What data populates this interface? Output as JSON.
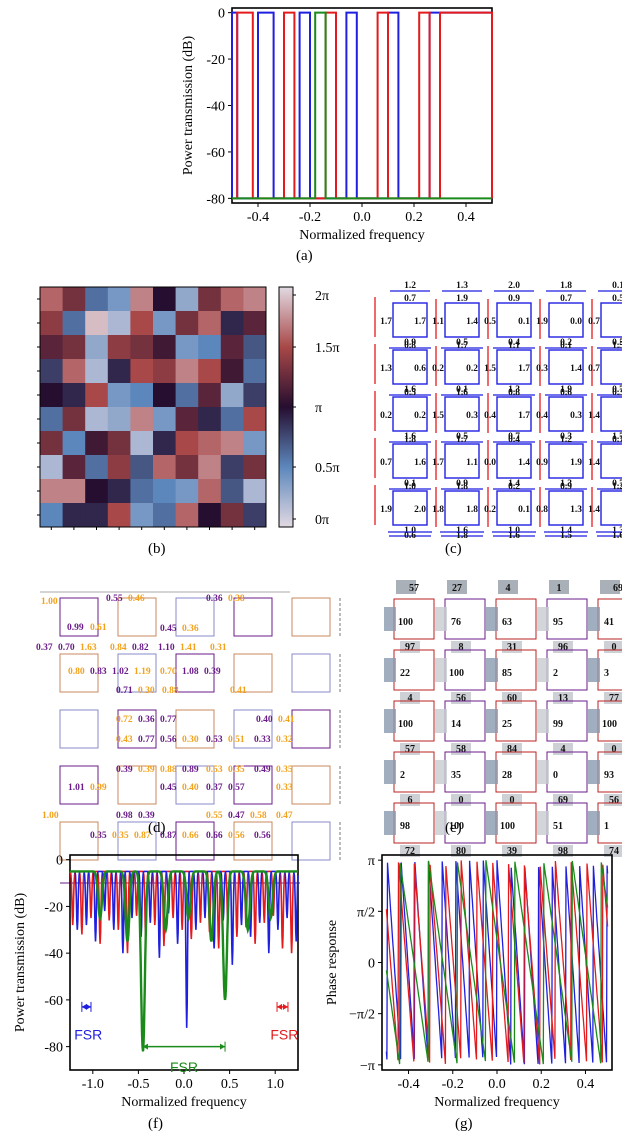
{
  "colors": {
    "red": "#e41a1c",
    "blue": "#1f1fe0",
    "green": "#1a8a1a",
    "purple": "#6a1b8a",
    "orange": "#f2a21c"
  },
  "panel_labels": {
    "a": "(a)",
    "b": "(b)",
    "c": "(c)",
    "d": "(d)",
    "e": "(e)",
    "f": "(f)",
    "g": "(g)"
  },
  "chart_data": [
    {
      "id": "a",
      "type": "line",
      "xlabel": "Normalized frequency",
      "ylabel": "Power transmission (dB)",
      "xlim": [
        -0.5,
        0.5
      ],
      "ylim": [
        -82,
        2
      ],
      "xticks": [
        "-0.4",
        "-0.2",
        "0.0",
        "0.2",
        "0.4"
      ],
      "xtick_values": [
        -0.4,
        -0.2,
        0.0,
        0.2,
        0.4
      ],
      "yticks": [
        "0",
        "-20",
        "-40",
        "-60",
        "-80"
      ],
      "ytick_values": [
        0,
        -20,
        -40,
        -60,
        -80
      ],
      "series": [
        {
          "color": "red",
          "passbands": [
            [
              -0.48,
              -0.42
            ],
            [
              -0.3,
              -0.26
            ],
            [
              -0.14,
              -0.1
            ],
            [
              0.06,
              0.1
            ],
            [
              0.22,
              0.26
            ],
            [
              0.3,
              0.5
            ]
          ]
        },
        {
          "color": "blue",
          "passbands": [
            [
              -0.5,
              -0.48
            ],
            [
              -0.4,
              -0.34
            ],
            [
              -0.24,
              -0.2
            ],
            [
              -0.06,
              -0.02
            ],
            [
              0.1,
              0.14
            ],
            [
              0.26,
              0.5
            ]
          ]
        },
        {
          "color": "green",
          "passbands": [
            [
              -0.18,
              -0.14
            ]
          ]
        }
      ]
    },
    {
      "id": "b",
      "type": "heatmap",
      "colorbar_labels": [
        "2π",
        "1.5π",
        "π",
        "0.5π",
        "0π"
      ],
      "colorbar_values": [
        2,
        1.5,
        1,
        0.5,
        0
      ],
      "rows": 10,
      "cols": 10,
      "values": [
        [
          1.6,
          1.3,
          0.6,
          0.4,
          1.7,
          1.0,
          0.3,
          1.3,
          1.6,
          1.7
        ],
        [
          1.4,
          0.6,
          1.9,
          0.2,
          1.5,
          0.4,
          1.3,
          1.6,
          0.9,
          1.2
        ],
        [
          1.2,
          1.3,
          0.3,
          1.4,
          1.3,
          1.1,
          0.4,
          0.5,
          1.2,
          0.7
        ],
        [
          0.8,
          1.6,
          0.2,
          0.9,
          1.5,
          1.4,
          1.7,
          1.5,
          1.1,
          0.6
        ],
        [
          1.0,
          0.9,
          1.5,
          0.4,
          0.5,
          1.0,
          0.6,
          1.2,
          0.3,
          0.8
        ],
        [
          0.6,
          1.3,
          0.2,
          0.3,
          1.7,
          0.4,
          1.2,
          0.9,
          0.6,
          1.5
        ],
        [
          1.3,
          0.5,
          1.1,
          1.3,
          0.2,
          0.9,
          1.5,
          1.6,
          1.7,
          0.4
        ],
        [
          0.2,
          1.2,
          0.6,
          1.4,
          0.7,
          1.6,
          1.3,
          1.7,
          0.8,
          1.3
        ],
        [
          1.7,
          1.7,
          1.0,
          0.9,
          0.6,
          0.5,
          0.4,
          1.6,
          0.7,
          0.2
        ],
        [
          0.5,
          0.9,
          0.9,
          1.5,
          0.4,
          0.6,
          1.6,
          1.0,
          1.3,
          0.8
        ]
      ]
    },
    {
      "id": "f",
      "type": "line",
      "xlabel": "Normalized frequency",
      "ylabel": "Power transmission (dB)",
      "xlim": [
        -1.25,
        1.25
      ],
      "ylim": [
        -90,
        2
      ],
      "xticks": [
        "-1.0",
        "-0.5",
        "0.0",
        "0.5",
        "1.0"
      ],
      "xtick_values": [
        -1.0,
        -0.5,
        0.0,
        0.5,
        1.0
      ],
      "yticks": [
        "0",
        "-20",
        "-40",
        "-60",
        "-80"
      ],
      "ytick_values": [
        0,
        -20,
        -40,
        -60,
        -80
      ],
      "annotations": [
        {
          "text": "FSR",
          "color": "blue",
          "x": -1.05,
          "y": -70
        },
        {
          "text": "FSR",
          "color": "green",
          "x": 0.0,
          "y": -84
        },
        {
          "text": "FSR",
          "color": "red",
          "x": 1.1,
          "y": -70
        }
      ],
      "series": [
        {
          "color": "blue",
          "dips": [
            -1.17,
            -1.07,
            -0.97,
            -0.87,
            -0.77,
            -0.67,
            -0.57,
            -0.47,
            -0.37,
            -0.27,
            -0.17,
            -0.07,
            0.03,
            0.13,
            0.23,
            0.33,
            0.43,
            0.53,
            0.63,
            0.73,
            0.83,
            0.93,
            1.03,
            1.13,
            1.23
          ],
          "dip_depths": [
            -30,
            -28,
            -35,
            -22,
            -30,
            -40,
            -25,
            -33,
            -27,
            -42,
            -23,
            -36,
            -72,
            -30,
            -25,
            -38,
            -26,
            -45,
            -28,
            -33,
            -27,
            -40,
            -30,
            -25,
            -35
          ]
        },
        {
          "color": "red",
          "dips": [
            -1.22,
            -1.12,
            -1.02,
            -0.92,
            -0.82,
            -0.72,
            -0.62,
            -0.52,
            -0.42,
            -0.32,
            -0.22,
            -0.12,
            -0.02,
            0.08,
            0.18,
            0.28,
            0.38,
            0.48,
            0.58,
            0.68,
            0.78,
            0.88,
            0.98,
            1.08,
            1.18
          ],
          "dip_depths": [
            -28,
            -32,
            -25,
            -36,
            -26,
            -30,
            -40,
            -24,
            -33,
            -28,
            -37,
            -25,
            -30,
            -34,
            -27,
            -31,
            -38,
            -26,
            -33,
            -29,
            -36,
            -27,
            -24,
            -38,
            -40
          ]
        },
        {
          "color": "green",
          "dips": [
            -0.92,
            -0.62,
            -0.45,
            -0.2,
            0.05,
            0.3,
            0.45,
            0.7,
            0.95
          ],
          "dip_depths": [
            -25,
            -35,
            -82,
            -30,
            -25,
            -35,
            -60,
            -30,
            -25
          ]
        }
      ]
    },
    {
      "id": "g",
      "type": "line",
      "xlabel": "Normalized frequency",
      "ylabel": "Phase response",
      "xlim": [
        -0.52,
        0.52
      ],
      "ylim": [
        -3.3,
        3.3
      ],
      "xticks": [
        "-0.4",
        "-0.2",
        "0.0",
        "0.2",
        "0.4"
      ],
      "xtick_values": [
        -0.4,
        -0.2,
        0.0,
        0.2,
        0.4
      ],
      "yticks": [
        "π",
        "π/2",
        "0",
        "−π/2",
        "−π"
      ],
      "ytick_values": [
        3.14159,
        1.5708,
        0,
        -1.5708,
        -3.14159
      ],
      "series": [
        {
          "color": "blue",
          "period": 0.062,
          "phase": 0.0
        },
        {
          "color": "red",
          "period": 0.071,
          "phase": 0.02
        },
        {
          "color": "green",
          "period": 0.13,
          "phase": 0.05
        }
      ]
    }
  ],
  "diagram_c": {
    "top_row": [
      "1.2",
      "1.3",
      "2.0",
      "1.8",
      "0.1"
    ],
    "bottom_row": [
      "0.6",
      "1.8",
      "1.6",
      "1.5",
      "1.6"
    ],
    "rows": [
      {
        "top": [
          "0.7",
          "1.9",
          "0.9",
          "0.7",
          "0.5"
        ],
        "mid": [
          "1.7",
          "1.7",
          "1.1",
          "1.4",
          "0.5",
          "0.1",
          "1.9",
          "0.0",
          "0.7",
          "0.1"
        ],
        "bot": [
          "0.9",
          "0.5",
          "0.4",
          "0.2",
          "0.5"
        ]
      },
      {
        "top": [
          "0.8",
          "1.7",
          "1.1",
          "0.1",
          "1.5"
        ],
        "mid": [
          "1.3",
          "0.6",
          "0.2",
          "0.2",
          "1.5",
          "1.7",
          "0.3",
          "1.4",
          "0.7",
          "1.6"
        ],
        "bot": [
          "1.6",
          "0.1",
          "1.3",
          "1.9",
          "0.7"
        ]
      },
      {
        "top": [
          "0.5",
          "1.6",
          "0.8",
          "0.6",
          "0.3"
        ],
        "mid": [
          "0.2",
          "0.2",
          "1.5",
          "0.3",
          "0.4",
          "1.7",
          "0.4",
          "0.3",
          "1.4",
          "1.4"
        ],
        "bot": [
          "1.6",
          "0.5",
          "0.7",
          "0.3",
          "1.7"
        ]
      },
      {
        "top": [
          "1.8",
          "1.7",
          "0.4",
          "1.2",
          "0.7"
        ],
        "mid": [
          "0.7",
          "1.6",
          "1.7",
          "1.1",
          "0.0",
          "1.4",
          "0.9",
          "1.9",
          "1.4",
          "1.5"
        ],
        "bot": [
          "0.1",
          "0.9",
          "1.4",
          "1.3",
          "0.7"
        ]
      },
      {
        "top": [
          "1.0",
          "1.8",
          "0.2",
          "0.9",
          "1.2"
        ],
        "mid": [
          "1.9",
          "2.0",
          "1.8",
          "1.8",
          "0.2",
          "0.1",
          "0.8",
          "1.3",
          "1.4",
          "0.5"
        ],
        "bot": [
          "1.0",
          "1.6",
          "1.0",
          "1.4",
          "1.3"
        ]
      }
    ]
  },
  "diagram_d": {
    "labels": [
      {
        "t": "1.00",
        "c": "orange"
      },
      {
        "t": "0.55",
        "c": "purple"
      },
      {
        "t": "0.46",
        "c": "orange"
      },
      {
        "t": "0.36",
        "c": "purple"
      },
      {
        "t": "0.38",
        "c": "orange"
      },
      {
        "t": "0.99",
        "c": "purple"
      },
      {
        "t": "0.61",
        "c": "orange"
      },
      {
        "t": "0.45",
        "c": "purple"
      },
      {
        "t": "0.36",
        "c": "orange"
      },
      {
        "t": "0.37",
        "c": "purple"
      },
      {
        "t": "0.70",
        "c": "purple"
      },
      {
        "t": "1.63",
        "c": "orange"
      },
      {
        "t": "0.84",
        "c": "orange"
      },
      {
        "t": "0.82",
        "c": "purple"
      },
      {
        "t": "1.10",
        "c": "purple"
      },
      {
        "t": "1.41",
        "c": "orange"
      },
      {
        "t": "0.31",
        "c": "orange"
      },
      {
        "t": "0.80",
        "c": "orange"
      },
      {
        "t": "0.83",
        "c": "purple"
      },
      {
        "t": "1.02",
        "c": "purple"
      },
      {
        "t": "1.19",
        "c": "orange"
      },
      {
        "t": "0.70",
        "c": "orange"
      },
      {
        "t": "1.08",
        "c": "purple"
      },
      {
        "t": "0.39",
        "c": "purple"
      },
      {
        "t": "0.71",
        "c": "purple"
      },
      {
        "t": "0.30",
        "c": "orange"
      },
      {
        "t": "0.88",
        "c": "orange"
      },
      {
        "t": "0.41",
        "c": "orange"
      },
      {
        "t": "0.72",
        "c": "orange"
      },
      {
        "t": "0.36",
        "c": "purple"
      },
      {
        "t": "0.77",
        "c": "purple"
      },
      {
        "t": "0.40",
        "c": "purple"
      },
      {
        "t": "0.41",
        "c": "orange"
      },
      {
        "t": "0.43",
        "c": "orange"
      },
      {
        "t": "0.77",
        "c": "purple"
      },
      {
        "t": "0.56",
        "c": "purple"
      },
      {
        "t": "0.30",
        "c": "orange"
      },
      {
        "t": "0.53",
        "c": "purple"
      },
      {
        "t": "0.51",
        "c": "orange"
      },
      {
        "t": "0.33",
        "c": "purple"
      },
      {
        "t": "0.32",
        "c": "orange"
      },
      {
        "t": "0.39",
        "c": "purple"
      },
      {
        "t": "0.39",
        "c": "orange"
      },
      {
        "t": "0.88",
        "c": "orange"
      },
      {
        "t": "0.89",
        "c": "purple"
      },
      {
        "t": "0.53",
        "c": "orange"
      },
      {
        "t": "0.35",
        "c": "orange"
      },
      {
        "t": "0.49",
        "c": "purple"
      },
      {
        "t": "0.35",
        "c": "orange"
      },
      {
        "t": "1.01",
        "c": "purple"
      },
      {
        "t": "0.99",
        "c": "orange"
      },
      {
        "t": "0.45",
        "c": "purple"
      },
      {
        "t": "0.40",
        "c": "orange"
      },
      {
        "t": "0.37",
        "c": "purple"
      },
      {
        "t": "0.57",
        "c": "purple"
      },
      {
        "t": "0.33",
        "c": "orange"
      },
      {
        "t": "1.00",
        "c": "orange"
      },
      {
        "t": "0.98",
        "c": "purple"
      },
      {
        "t": "0.39",
        "c": "purple"
      },
      {
        "t": "0.55",
        "c": "orange"
      },
      {
        "t": "0.47",
        "c": "purple"
      },
      {
        "t": "0.58",
        "c": "orange"
      },
      {
        "t": "0.47",
        "c": "orange"
      },
      {
        "t": "0.35",
        "c": "purple"
      },
      {
        "t": "0.35",
        "c": "orange"
      },
      {
        "t": "0.87",
        "c": "orange"
      },
      {
        "t": "0.87",
        "c": "purple"
      },
      {
        "t": "0.66",
        "c": "orange"
      },
      {
        "t": "0.66",
        "c": "purple"
      },
      {
        "t": "0.56",
        "c": "orange"
      },
      {
        "t": "0.56",
        "c": "purple"
      }
    ]
  },
  "diagram_e": {
    "top_row": [
      "57",
      "27",
      "4",
      "1",
      "69"
    ],
    "rows": [
      {
        "left": [
          "100",
          "76",
          "63",
          "95",
          "41"
        ],
        "below": [
          "97",
          "8",
          "31",
          "96",
          "0"
        ]
      },
      {
        "left": [
          "22",
          "100",
          "85",
          "2",
          "3"
        ],
        "below": [
          "4",
          "56",
          "60",
          "13",
          "77"
        ]
      },
      {
        "left": [
          "100",
          "14",
          "25",
          "99",
          "100"
        ],
        "below": [
          "57",
          "58",
          "84",
          "4",
          "0"
        ]
      },
      {
        "left": [
          "2",
          "35",
          "28",
          "0",
          "93"
        ],
        "below": [
          "6",
          "0",
          "0",
          "69",
          "56"
        ]
      },
      {
        "left": [
          "98",
          "100",
          "100",
          "51",
          "1"
        ],
        "below": [
          "72",
          "80",
          "39",
          "98",
          "74"
        ]
      }
    ]
  }
}
